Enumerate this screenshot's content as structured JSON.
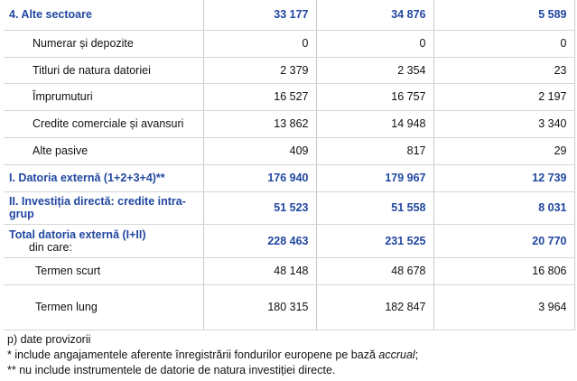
{
  "table": {
    "rows": [
      {
        "label": "4. Alte sectoare",
        "values": [
          "33 177",
          "34 876",
          "5 589"
        ],
        "emphasis": true
      },
      {
        "label": "Numerar și depozite",
        "values": [
          "0",
          "0",
          "0"
        ]
      },
      {
        "label": "Titluri de natura datoriei",
        "values": [
          "2 379",
          "2 354",
          "23"
        ]
      },
      {
        "label": "Împrumuturi",
        "values": [
          "16 527",
          "16 757",
          "2 197"
        ]
      },
      {
        "label": "Credite comerciale și avansuri",
        "values": [
          "13 862",
          "14 948",
          "3 340"
        ]
      },
      {
        "label": "Alte pasive",
        "values": [
          "409",
          "817",
          "29"
        ]
      },
      {
        "label": "I. Datoria externă  (1+2+3+4)**",
        "values": [
          "176 940",
          "179 967",
          "12 739"
        ],
        "emphasis": true
      },
      {
        "label": "II. Investiția directă: credite intra-grup",
        "values": [
          "51 523",
          "51 558",
          "8 031"
        ],
        "emphasis": true
      },
      {
        "label": "Total datoria externă  (I+II)",
        "sublabel": "din care:",
        "values": [
          "228 463",
          "231 525",
          "20 770"
        ],
        "emphasis": true
      },
      {
        "label": "Termen scurt",
        "values": [
          "48 148",
          "48 678",
          "16 806"
        ]
      },
      {
        "label": "Termen lung",
        "values": [
          "180 315",
          "182 847",
          "3 964"
        ]
      }
    ]
  },
  "footnotes": [
    {
      "text": "p) date provizorii"
    },
    {
      "text": "* include angajamentele aferente înregistrării fondurilor europene pe bază ",
      "italic": "accrual",
      "end": ";"
    },
    {
      "text": "** nu include instrumentele de datorie de natura investiției directe."
    }
  ]
}
